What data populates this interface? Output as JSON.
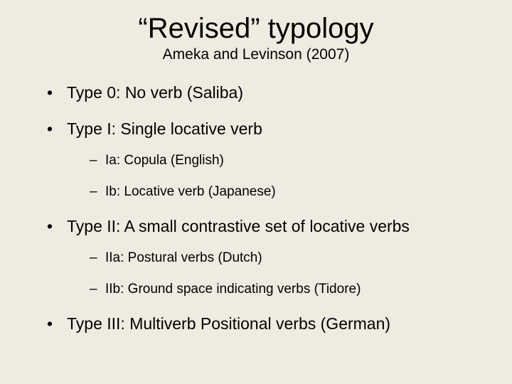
{
  "slide": {
    "background_color": "#eeece1",
    "text_color": "#000000",
    "title": "“Revised” typology",
    "title_fontsize": 40,
    "subtitle": "Ameka and Levinson (2007)",
    "subtitle_fontsize": 21,
    "bullets": [
      {
        "text": "Type 0: No verb (Saliba)",
        "children": []
      },
      {
        "text": "Type I: Single locative verb",
        "children": [
          {
            "text": "Ia: Copula (English)"
          },
          {
            "text": "Ib: Locative verb (Japanese)"
          }
        ]
      },
      {
        "text": "Type II:  A small contrastive set of locative verbs",
        "children": [
          {
            "text": "IIa: Postural verbs (Dutch)"
          },
          {
            "text": "IIb: Ground space indicating verbs (Tidore)"
          }
        ]
      },
      {
        "text": "Type III: Multiverb Positional verbs (German)",
        "children": []
      }
    ],
    "level1_fontsize": 23,
    "level2_fontsize": 19
  }
}
